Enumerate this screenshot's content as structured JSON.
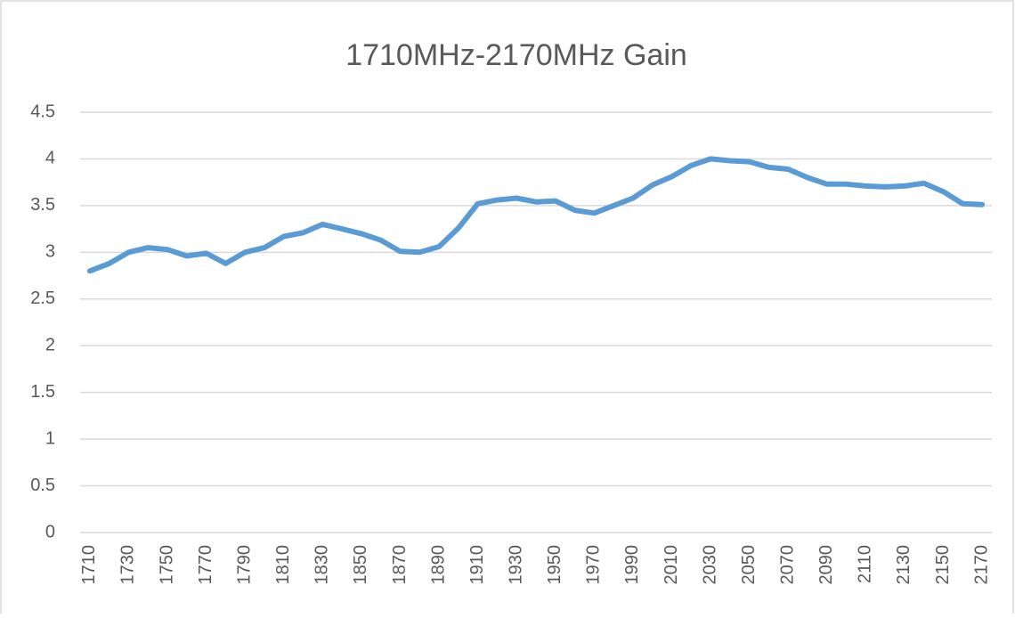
{
  "chart_data": {
    "type": "line",
    "title": "1710MHz-2170MHz Gain",
    "categories": [
      "1710",
      null,
      "1730",
      null,
      "1750",
      null,
      "1770",
      null,
      "1790",
      null,
      "1810",
      null,
      "1830",
      null,
      "1850",
      null,
      "1870",
      null,
      "1890",
      null,
      "1910",
      null,
      "1930",
      null,
      "1950",
      null,
      "1970",
      null,
      "1990",
      null,
      "2010",
      null,
      "2030",
      null,
      "2050",
      null,
      "2070",
      null,
      "2090",
      null,
      "2110",
      null,
      "2130",
      null,
      "2150",
      null,
      "2170"
    ],
    "series": [
      {
        "name": "Gain",
        "color": "#5b9bd5",
        "values": [
          2.8,
          2.88,
          3.0,
          3.05,
          3.03,
          2.96,
          2.99,
          2.88,
          3.0,
          3.05,
          3.17,
          3.21,
          3.3,
          3.25,
          3.2,
          3.13,
          3.01,
          3.0,
          3.06,
          3.26,
          3.52,
          3.56,
          3.58,
          3.54,
          3.55,
          3.45,
          3.42,
          3.5,
          3.58,
          3.72,
          3.81,
          3.93,
          4.0,
          3.98,
          3.97,
          3.91,
          3.89,
          3.8,
          3.73,
          3.73,
          3.71,
          3.7,
          3.71,
          3.74,
          3.65,
          3.52,
          3.51
        ]
      }
    ],
    "ylim": [
      0,
      4.5
    ],
    "yticks": [
      0,
      0.5,
      1,
      1.5,
      2,
      2.5,
      3,
      3.5,
      4,
      4.5
    ],
    "grid": true
  }
}
